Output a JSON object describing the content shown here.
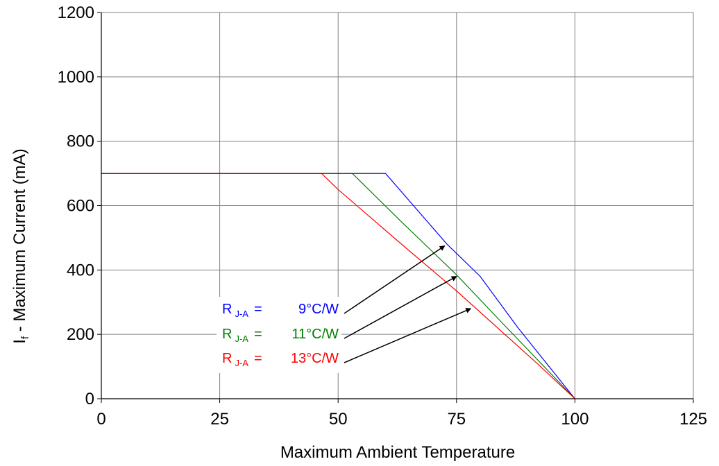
{
  "chart_data": {
    "type": "line",
    "title": "",
    "xlabel": "Maximum Ambient Temperature",
    "ylabel_main": "I",
    "ylabel_sub": "f",
    "ylabel_rest": " - Maximum Current (mA)",
    "xlim": [
      0,
      125
    ],
    "ylim": [
      0,
      1200
    ],
    "x_ticks": [
      0,
      25,
      50,
      75,
      100,
      125
    ],
    "y_ticks": [
      0,
      200,
      400,
      600,
      800,
      1000,
      1200
    ],
    "x_tick_labels": [
      "0",
      "25",
      "50",
      "75",
      "100",
      "125"
    ],
    "y_tick_labels": [
      "0",
      "200",
      "400",
      "600",
      "800",
      "1000",
      "1200"
    ],
    "grid": true,
    "legend_position": "annotations with arrows, lower-middle",
    "series": [
      {
        "color": "#0000ff",
        "x": [
          0,
          60,
          73,
          80,
          88,
          100
        ],
        "y": [
          700,
          700,
          480,
          380,
          220,
          0
        ],
        "label_prefix": "R",
        "label_sub": "J-A",
        "label_eq": "=",
        "label_value": "9°C/W",
        "arrow_target": [
          72.5,
          475
        ]
      },
      {
        "color": "#008000",
        "x": [
          0,
          53,
          63,
          75,
          85,
          100
        ],
        "y": [
          700,
          700,
          555,
          385,
          230,
          0
        ],
        "label_prefix": "R",
        "label_sub": "J-A",
        "label_eq": "=",
        "label_value": "11°C/W",
        "arrow_target": [
          75,
          380
        ]
      },
      {
        "color": "#ff0000",
        "x": [
          0,
          46.5,
          50,
          63,
          75,
          92,
          100
        ],
        "y": [
          700,
          700,
          650,
          485,
          335,
          110,
          0
        ],
        "label_prefix": "R",
        "label_sub": "J-A",
        "label_eq": "=",
        "label_value": "13°C/W",
        "arrow_target": [
          78,
          280
        ]
      }
    ]
  }
}
